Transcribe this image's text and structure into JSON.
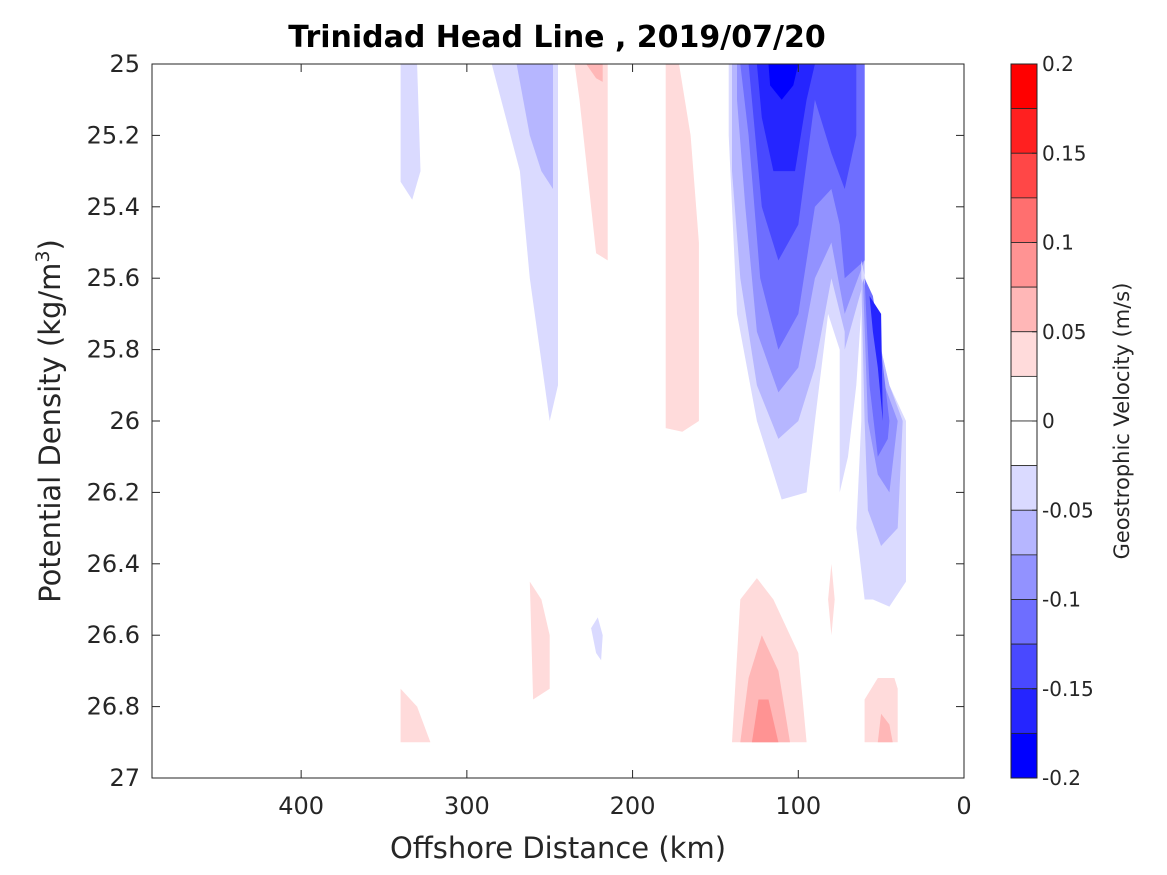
{
  "chart_data": {
    "type": "contour",
    "title": "Trinidad Head Line , 2019/07/20",
    "xlabel": "Offshore Distance (km)",
    "ylabel_main": "Potential Density (kg/m",
    "ylabel_sup": "3",
    "ylabel_close": ")",
    "colorbar_label": "Geostrophic Velocity (m/s)",
    "xlim": [
      490,
      0
    ],
    "ylim": [
      25,
      27
    ],
    "x_ticks": [
      "400",
      "300",
      "200",
      "100",
      "0"
    ],
    "x_tick_values": [
      400,
      300,
      200,
      100,
      0
    ],
    "y_ticks": [
      "25",
      "25.2",
      "25.4",
      "25.6",
      "25.8",
      "26",
      "26.2",
      "26.4",
      "26.6",
      "26.8",
      "27"
    ],
    "y_tick_values": [
      25,
      25.2,
      25.4,
      25.6,
      25.8,
      26,
      26.2,
      26.4,
      26.6,
      26.8,
      27
    ],
    "colorbar_range": [
      -0.2,
      0.2
    ],
    "colorbar_ticks": [
      "0.2",
      "0.15",
      "0.1",
      "0.05",
      "0",
      "-0.05",
      "-0.1",
      "-0.15",
      "-0.2"
    ],
    "colorbar_tick_values": [
      0.2,
      0.15,
      0.1,
      0.05,
      0,
      -0.05,
      -0.1,
      -0.15,
      -0.2
    ],
    "levels": [
      {
        "v": [
          0.175,
          0.2
        ],
        "color": "#ff0000"
      },
      {
        "v": [
          0.15,
          0.175
        ],
        "color": "#ff2020"
      },
      {
        "v": [
          0.125,
          0.15
        ],
        "color": "#ff4747"
      },
      {
        "v": [
          0.1,
          0.125
        ],
        "color": "#ff6f6f"
      },
      {
        "v": [
          0.075,
          0.1
        ],
        "color": "#ff9393"
      },
      {
        "v": [
          0.05,
          0.075
        ],
        "color": "#ffb7b7"
      },
      {
        "v": [
          0.025,
          0.05
        ],
        "color": "#ffdbdb"
      },
      {
        "v": [
          0,
          0.025
        ],
        "color": "#ffffff"
      },
      {
        "v": [
          -0.025,
          0
        ],
        "color": "#ffffff"
      },
      {
        "v": [
          -0.05,
          -0.025
        ],
        "color": "#dadaff"
      },
      {
        "v": [
          -0.075,
          -0.05
        ],
        "color": "#b6b6ff"
      },
      {
        "v": [
          -0.1,
          -0.075
        ],
        "color": "#9292ff"
      },
      {
        "v": [
          -0.125,
          -0.1
        ],
        "color": "#6e6eff"
      },
      {
        "v": [
          -0.15,
          -0.125
        ],
        "color": "#4949ff"
      },
      {
        "v": [
          -0.175,
          -0.15
        ],
        "color": "#2525ff"
      },
      {
        "v": [
          -0.2,
          -0.175
        ],
        "color": "#0000ff"
      }
    ],
    "regions": [
      {
        "name": "neg-340",
        "color": "#dadaff",
        "points": [
          [
            340,
            25
          ],
          [
            330,
            25
          ],
          [
            328,
            25.3
          ],
          [
            333,
            25.38
          ],
          [
            340,
            25.33
          ]
        ]
      },
      {
        "name": "neg-280",
        "color": "#dadaff",
        "points": [
          [
            285,
            25
          ],
          [
            245,
            25
          ],
          [
            245,
            25.9
          ],
          [
            250,
            26.0
          ],
          [
            262,
            25.6
          ],
          [
            268,
            25.3
          ]
        ]
      },
      {
        "name": "neg-265",
        "color": "#b6b6ff",
        "points": [
          [
            270,
            25
          ],
          [
            248,
            25
          ],
          [
            248,
            25.35
          ],
          [
            255,
            25.3
          ],
          [
            262,
            25.2
          ]
        ]
      },
      {
        "name": "pos-230",
        "color": "#ffdbdb",
        "points": [
          [
            235,
            25
          ],
          [
            215,
            25
          ],
          [
            215,
            25.55
          ],
          [
            222,
            25.53
          ],
          [
            232,
            25.1
          ]
        ]
      },
      {
        "name": "pos-225",
        "color": "#ffb7b7",
        "points": [
          [
            228,
            25
          ],
          [
            218,
            25
          ],
          [
            218,
            25.05
          ],
          [
            222,
            25.04
          ]
        ]
      },
      {
        "name": "pos-175",
        "color": "#ffdbdb",
        "points": [
          [
            180,
            25
          ],
          [
            172,
            25
          ],
          [
            165,
            25.2
          ],
          [
            160,
            25.5
          ],
          [
            160,
            26.0
          ],
          [
            170,
            26.03
          ],
          [
            180,
            26.02
          ],
          [
            180,
            25.2
          ]
        ]
      },
      {
        "name": "neg-core-outer",
        "color": "#dadaff",
        "points": [
          [
            142,
            25
          ],
          [
            60,
            25
          ],
          [
            60,
            25.55
          ],
          [
            65,
            25.9
          ],
          [
            70,
            26.1
          ],
          [
            75,
            26.2
          ],
          [
            75,
            25.8
          ],
          [
            82,
            25.7
          ],
          [
            90,
            26.0
          ],
          [
            95,
            26.2
          ],
          [
            110,
            26.22
          ],
          [
            125,
            26.0
          ],
          [
            137,
            25.7
          ],
          [
            142,
            25.2
          ]
        ]
      },
      {
        "name": "neg-core-2",
        "color": "#b6b6ff",
        "points": [
          [
            140,
            25
          ],
          [
            60,
            25
          ],
          [
            60,
            25.6
          ],
          [
            72,
            25.8
          ],
          [
            72,
            25.75
          ],
          [
            80,
            25.6
          ],
          [
            90,
            25.85
          ],
          [
            100,
            26.0
          ],
          [
            112,
            26.05
          ],
          [
            125,
            25.9
          ],
          [
            135,
            25.6
          ],
          [
            140,
            25.3
          ]
        ]
      },
      {
        "name": "neg-core-3",
        "color": "#9292ff",
        "points": [
          [
            137,
            25
          ],
          [
            60,
            25
          ],
          [
            60,
            25.55
          ],
          [
            72,
            25.7
          ],
          [
            80,
            25.5
          ],
          [
            90,
            25.6
          ],
          [
            100,
            25.85
          ],
          [
            112,
            25.92
          ],
          [
            125,
            25.75
          ],
          [
            132,
            25.4
          ],
          [
            137,
            25.1
          ]
        ]
      },
      {
        "name": "neg-core-4",
        "color": "#6e6eff",
        "points": [
          [
            135,
            25
          ],
          [
            60,
            25
          ],
          [
            60,
            25.55
          ],
          [
            72,
            25.6
          ],
          [
            75,
            25.45
          ],
          [
            80,
            25.35
          ],
          [
            90,
            25.4
          ],
          [
            100,
            25.7
          ],
          [
            112,
            25.8
          ],
          [
            123,
            25.6
          ],
          [
            130,
            25.2
          ]
        ]
      },
      {
        "name": "neg-core-5",
        "color": "#4949ff",
        "points": [
          [
            130,
            25
          ],
          [
            65,
            25
          ],
          [
            65,
            25.2
          ],
          [
            72,
            25.35
          ],
          [
            80,
            25.25
          ],
          [
            90,
            25.1
          ],
          [
            100,
            25.45
          ],
          [
            112,
            25.55
          ],
          [
            122,
            25.4
          ],
          [
            128,
            25.1
          ]
        ]
      },
      {
        "name": "neg-core-6",
        "color": "#2525ff",
        "points": [
          [
            125,
            25
          ],
          [
            90,
            25
          ],
          [
            95,
            25.1
          ],
          [
            102,
            25.3
          ],
          [
            115,
            25.3
          ],
          [
            122,
            25.15
          ]
        ]
      },
      {
        "name": "neg-core-7",
        "color": "#0000ff",
        "points": [
          [
            118,
            25
          ],
          [
            100,
            25
          ],
          [
            103,
            25.06
          ],
          [
            110,
            25.1
          ],
          [
            117,
            25.06
          ]
        ]
      },
      {
        "name": "neg-coast-outer",
        "color": "#dadaff",
        "points": [
          [
            62,
            25.55
          ],
          [
            62,
            26.0
          ],
          [
            65,
            26.3
          ],
          [
            60,
            26.5
          ],
          [
            55,
            26.5
          ],
          [
            45,
            26.52
          ],
          [
            35,
            26.45
          ],
          [
            35,
            26.0
          ],
          [
            45,
            25.9
          ],
          [
            55,
            25.7
          ]
        ]
      },
      {
        "name": "neg-coast-2",
        "color": "#b6b6ff",
        "points": [
          [
            62,
            25.6
          ],
          [
            60,
            26.0
          ],
          [
            58,
            26.25
          ],
          [
            50,
            26.35
          ],
          [
            40,
            26.3
          ],
          [
            37,
            26.0
          ],
          [
            45,
            25.9
          ],
          [
            55,
            25.7
          ]
        ]
      },
      {
        "name": "neg-coast-3",
        "color": "#9292ff",
        "points": [
          [
            61,
            25.6
          ],
          [
            58,
            26.0
          ],
          [
            52,
            26.15
          ],
          [
            45,
            26.2
          ],
          [
            40,
            26.0
          ],
          [
            48,
            25.9
          ],
          [
            55,
            25.7
          ]
        ]
      },
      {
        "name": "neg-coast-4",
        "color": "#6e6eff",
        "points": [
          [
            60,
            25.6
          ],
          [
            57,
            25.9
          ],
          [
            52,
            26.1
          ],
          [
            46,
            26.05
          ],
          [
            45,
            26.0
          ],
          [
            50,
            25.8
          ],
          [
            55,
            25.65
          ]
        ]
      },
      {
        "name": "neg-coast-5",
        "color": "#2525ff",
        "points": [
          [
            57,
            25.65
          ],
          [
            50,
            25.7
          ],
          [
            49,
            26.0
          ],
          [
            52,
            25.85
          ],
          [
            55,
            25.75
          ]
        ]
      },
      {
        "name": "pos-260",
        "color": "#ffdbdb",
        "points": [
          [
            262,
            26.45
          ],
          [
            260,
            26.78
          ],
          [
            250,
            26.75
          ],
          [
            250,
            26.6
          ],
          [
            255,
            26.5
          ]
        ]
      },
      {
        "name": "neg-222",
        "color": "#dadaff",
        "points": [
          [
            225,
            26.58
          ],
          [
            222,
            26.65
          ],
          [
            219,
            26.67
          ],
          [
            218,
            26.6
          ],
          [
            221,
            26.55
          ]
        ]
      },
      {
        "name": "pos-340",
        "color": "#ffdbdb",
        "points": [
          [
            340,
            26.75
          ],
          [
            340,
            26.9
          ],
          [
            322,
            26.9
          ],
          [
            330,
            26.8
          ]
        ]
      },
      {
        "name": "pos-120-outer",
        "color": "#ffdbdb",
        "points": [
          [
            140,
            26.9
          ],
          [
            135,
            26.5
          ],
          [
            125,
            26.44
          ],
          [
            115,
            26.5
          ],
          [
            100,
            26.65
          ],
          [
            95,
            26.9
          ]
        ]
      },
      {
        "name": "pos-120-2",
        "color": "#ffb7b7",
        "points": [
          [
            135,
            26.9
          ],
          [
            130,
            26.72
          ],
          [
            122,
            26.6
          ],
          [
            112,
            26.7
          ],
          [
            105,
            26.9
          ]
        ]
      },
      {
        "name": "pos-120-3",
        "color": "#ff9393",
        "points": [
          [
            128,
            26.9
          ],
          [
            124,
            26.78
          ],
          [
            118,
            26.78
          ],
          [
            112,
            26.9
          ]
        ]
      },
      {
        "name": "pos-80",
        "color": "#ffdbdb",
        "points": [
          [
            80,
            26.4
          ],
          [
            82,
            26.5
          ],
          [
            80,
            26.6
          ],
          [
            78,
            26.5
          ]
        ]
      },
      {
        "name": "pos-50-outer",
        "color": "#ffdbdb",
        "points": [
          [
            60,
            26.9
          ],
          [
            60,
            26.78
          ],
          [
            52,
            26.72
          ],
          [
            42,
            26.72
          ],
          [
            40,
            26.75
          ],
          [
            40,
            26.9
          ]
        ]
      },
      {
        "name": "pos-50-2",
        "color": "#ffb7b7",
        "points": [
          [
            52,
            26.9
          ],
          [
            50,
            26.82
          ],
          [
            45,
            26.85
          ],
          [
            43,
            26.9
          ]
        ]
      }
    ]
  }
}
